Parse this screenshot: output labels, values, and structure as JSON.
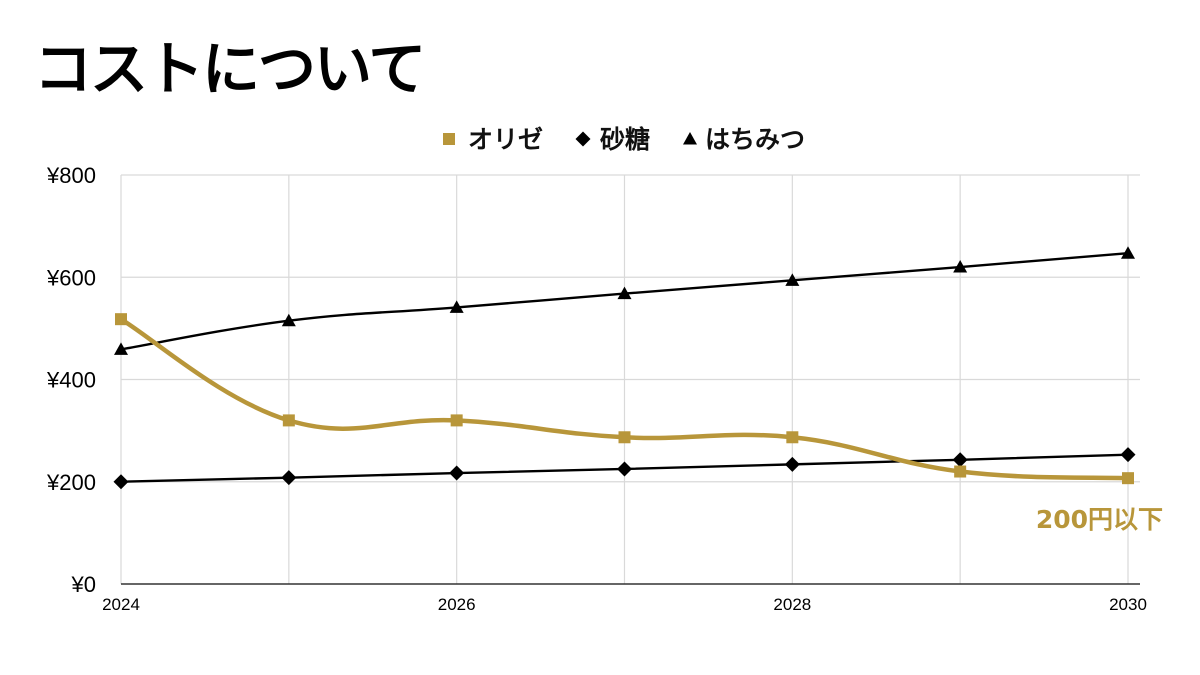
{
  "slide": {
    "title": "コストについて"
  },
  "colors": {
    "oryza": "#B8963A",
    "black": "#000000",
    "grid": "#D9D9D9"
  },
  "chart_data": {
    "type": "line",
    "title": "",
    "xlabel": "",
    "ylabel": "",
    "x": [
      2024,
      2025,
      2026,
      2027,
      2028,
      2029,
      2030
    ],
    "x_ticks": [
      "2024",
      "2026",
      "2028",
      "2030"
    ],
    "xlim": [
      2024,
      2030
    ],
    "ylim": [
      0,
      800
    ],
    "y_ticks": [
      "¥0",
      "¥200",
      "¥400",
      "¥600",
      "¥800"
    ],
    "grid": true,
    "legend_position": "top",
    "series": [
      {
        "name": "オリゼ",
        "marker": "square",
        "smooth": true,
        "color": "#B8963A",
        "values": [
          518,
          320,
          320,
          287,
          287,
          220,
          207
        ]
      },
      {
        "name": "砂糖",
        "marker": "diamond",
        "smooth": false,
        "color": "#000000",
        "values": [
          200,
          208,
          217,
          225,
          234,
          243,
          253
        ]
      },
      {
        "name": "はちみつ",
        "marker": "triangle",
        "smooth": true,
        "color": "#000000",
        "values": [
          459,
          515,
          541,
          568,
          594,
          620,
          647
        ]
      }
    ],
    "annotations": [
      {
        "text": "200円以下",
        "color": "#B8963A"
      }
    ]
  }
}
